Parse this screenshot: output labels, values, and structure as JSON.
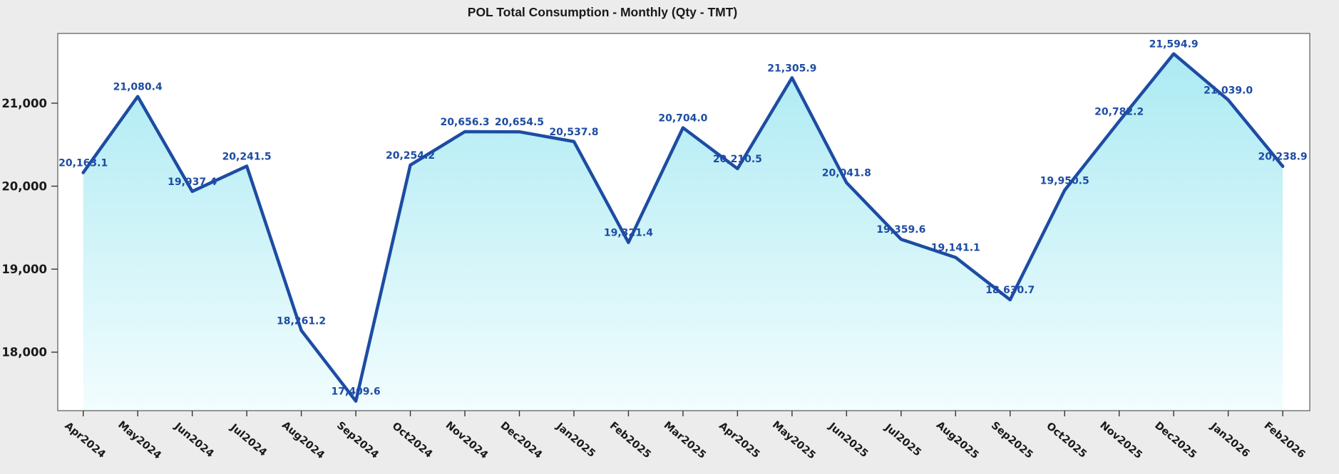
{
  "title": "POL Total Consumption - Monthly (Qty - TMT)",
  "chart_data": {
    "type": "area",
    "title": "POL Total Consumption - Monthly (Qty - TMT)",
    "xlabel": "",
    "ylabel": "",
    "grid": false,
    "legend": "none",
    "categories": [
      "Apr2024",
      "May2024",
      "Jun2024",
      "Jul2024",
      "Aug2024",
      "Sep2024",
      "Oct2024",
      "Nov2024",
      "Dec2024",
      "Jan2025",
      "Feb2025",
      "Mar2025",
      "Apr2025",
      "May2025",
      "Jun2025",
      "Jul2025",
      "Aug2025",
      "Sep2025",
      "Oct2025",
      "Nov2025",
      "Dec2025",
      "Jan2026",
      "Feb2026"
    ],
    "series": [
      {
        "name": "POL Total Consumption (Qty - TMT)",
        "values": [
          20163.1,
          21080.4,
          19937.4,
          20241.5,
          18261.2,
          17409.6,
          20254.2,
          20656.3,
          20654.5,
          20537.8,
          19321.4,
          20704.0,
          20210.5,
          21305.9,
          20041.8,
          19359.6,
          19141.1,
          18630.7,
          19950.5,
          20782.2,
          21594.9,
          21039.0,
          20238.9
        ],
        "point_labels": [
          "20,163.1",
          "21,080.4",
          "19,937.4",
          "20,241.5",
          "18,261.2",
          "17,409.6",
          "20,254.2",
          "20,656.3",
          "20,654.5",
          "20,537.8",
          "19,321.4",
          "20,704.0",
          "20,210.5",
          "21,305.9",
          "20,041.8",
          "19,359.6",
          "19,141.1",
          "18,630.7",
          "19,950.5",
          "20,782.2",
          "21,594.9",
          "21,039.0",
          "20,238.9"
        ]
      }
    ],
    "ylim": [
      17295,
      21840
    ],
    "yticks": [
      18000,
      19000,
      20000,
      21000
    ],
    "ytick_labels": [
      "18,000",
      "19,000",
      "20,000",
      "21,000"
    ],
    "colors": {
      "line": "#1d4ca3",
      "data_label": "#1d4ca3",
      "fill_top": "#a8e9f2",
      "fill_bottom": "#f2fdfe",
      "plot_background": "#ffffff",
      "figure_background": "#ececec",
      "plot_border": "#6e6e6e",
      "tick": "#333333",
      "text": "#1a1a1a"
    }
  }
}
